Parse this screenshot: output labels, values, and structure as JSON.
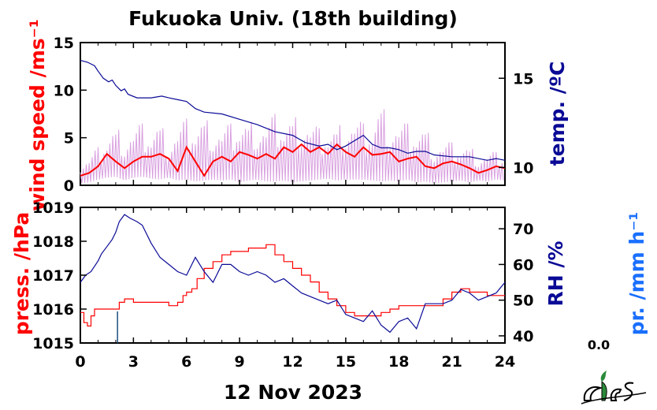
{
  "title": "Fukuoka Univ. (18th building)",
  "date_label": "12 Nov 2023",
  "precip_value": "0.0",
  "colors": {
    "wind": "#ff0000",
    "wind_raw": "#d9a0e0",
    "temp": "#0a0a96",
    "press": "#ff0000",
    "rh": "#0a0a96",
    "precip": "#1a6fff",
    "precip_bar": "#1a5080"
  },
  "chart_data": [
    {
      "type": "line",
      "panel": "top",
      "x_ticks": [
        "0",
        "3",
        "6",
        "9",
        "12",
        "15",
        "18",
        "21",
        "24"
      ],
      "xlim": [
        0,
        24
      ],
      "left_axis": {
        "label": "wind speed /ms⁻¹",
        "ticks": [
          "0",
          "5",
          "10",
          "15"
        ],
        "ylim": [
          0,
          15
        ]
      },
      "right_axis": {
        "label": "temp. /ºC",
        "ticks": [
          "10",
          "15"
        ],
        "ylim": [
          9,
          17
        ]
      },
      "series": [
        {
          "axis": "left",
          "style": "raw",
          "x": [
            0,
            0.5,
            1,
            1.5,
            2,
            2.5,
            3,
            3.5,
            4,
            4.5,
            5,
            5.5,
            6,
            6.5,
            7,
            7.5,
            8,
            8.5,
            9,
            9.5,
            10,
            10.5,
            11,
            11.5,
            12,
            12.5,
            13,
            13.5,
            14,
            14.5,
            15,
            15.5,
            16,
            16.5,
            17,
            17.5,
            18,
            18.5,
            19,
            19.5,
            20,
            20.5,
            21,
            21.5,
            22,
            22.5,
            23,
            23.5,
            24
          ],
          "low": [
            0.2,
            0.3,
            0.6,
            0.8,
            0.9,
            0.5,
            0.8,
            0.9,
            0.7,
            0.6,
            0.8,
            0.5,
            0.6,
            0.4,
            0.5,
            0.6,
            0.5,
            0.6,
            0.3,
            0.5,
            0.6,
            0.4,
            0.4,
            0.5,
            0.3,
            0.4,
            0.5,
            0.6,
            0.7,
            0.5,
            0.6,
            0.6,
            0.6,
            0.5,
            0.4,
            0.5,
            0.4,
            0.6,
            0.3,
            0.4,
            0.2,
            0.3,
            0.4,
            0.5,
            0.3,
            0.5,
            0.4,
            0.6,
            0.5
          ],
          "high": [
            2.5,
            3,
            4,
            5.5,
            6,
            5.5,
            6,
            6.5,
            6,
            6.5,
            5,
            6,
            7,
            6.5,
            7,
            6.5,
            6,
            6.5,
            7,
            6.5,
            7,
            6.5,
            7.5,
            7,
            7,
            7.5,
            6.5,
            6,
            6,
            6,
            7,
            7,
            6.5,
            6.5,
            8.5,
            7,
            6.5,
            6.5,
            6,
            6,
            4.5,
            4.5,
            4.5,
            4.5,
            4,
            3.5,
            3.5,
            3.5,
            3.5
          ]
        },
        {
          "axis": "left",
          "x": [
            0,
            0.5,
            1,
            1.5,
            2,
            2.5,
            3,
            3.5,
            4,
            4.5,
            5,
            5.5,
            6,
            6.5,
            7,
            7.5,
            8,
            8.5,
            9,
            9.5,
            10,
            10.5,
            11,
            11.5,
            12,
            12.5,
            13,
            13.5,
            14,
            14.5,
            15,
            15.5,
            16,
            16.5,
            17,
            17.5,
            18,
            18.5,
            19,
            19.5,
            20,
            20.5,
            21,
            21.5,
            22,
            22.5,
            23,
            23.5,
            24
          ],
          "y": [
            1,
            1.3,
            2,
            3.3,
            2.5,
            1.8,
            2.5,
            3,
            3,
            3.3,
            2.8,
            1.5,
            4,
            2.5,
            1,
            2.5,
            3,
            2.5,
            3.5,
            3.2,
            2.8,
            3.3,
            2.8,
            4,
            3.5,
            4.3,
            3.5,
            4,
            3.3,
            4.3,
            3.5,
            3,
            4,
            3.2,
            3.3,
            3.5,
            2.5,
            2.8,
            3,
            2,
            1.8,
            2.3,
            2.5,
            2.2,
            1.8,
            1.3,
            1.6,
            2,
            1.8
          ]
        },
        {
          "axis": "right",
          "x": [
            0,
            0.4,
            0.8,
            1,
            1.3,
            1.6,
            1.8,
            2,
            2.3,
            2.5,
            2.7,
            3.2,
            4,
            4.6,
            5,
            5.5,
            6,
            6.5,
            7,
            8,
            9,
            10,
            11,
            12,
            12.7,
            13.5,
            14,
            14.5,
            15,
            15.5,
            16,
            16.5,
            17,
            17.5,
            18,
            18.5,
            19,
            19.5,
            20,
            21,
            22,
            23,
            23.5,
            24
          ],
          "y": [
            16,
            15.9,
            15.7,
            15.4,
            15,
            14.8,
            14.9,
            14.6,
            14.3,
            14.4,
            14.1,
            13.9,
            13.9,
            14,
            13.9,
            13.8,
            13.7,
            13.3,
            13.1,
            13,
            12.7,
            12.4,
            12,
            11.8,
            11.4,
            11.2,
            11.3,
            11,
            11.2,
            11.5,
            11.8,
            11.3,
            11.1,
            11.1,
            11,
            10.8,
            10.9,
            10.9,
            10.7,
            10.6,
            10.6,
            10.4,
            10.5,
            10.4
          ]
        }
      ]
    },
    {
      "type": "line",
      "panel": "bottom",
      "x_ticks": [
        "0",
        "3",
        "6",
        "9",
        "12",
        "15",
        "18",
        "21",
        "24"
      ],
      "xlim": [
        0,
        24
      ],
      "xlabel": "12 Nov 2023",
      "left_axis": {
        "label": "press. /hPa",
        "ticks": [
          "1015",
          "1016",
          "1017",
          "1018",
          "1019"
        ],
        "ylim": [
          1015,
          1019
        ]
      },
      "right_axis": {
        "label": "RH /%",
        "ticks": [
          "40",
          "50",
          "60",
          "70"
        ],
        "ylim": [
          38,
          76
        ]
      },
      "precip_axis": {
        "label": "pr. /mm h⁻¹"
      },
      "series": [
        {
          "axis": "left",
          "step": true,
          "x": [
            0,
            0.2,
            0.4,
            0.6,
            0.8,
            1,
            1.5,
            2,
            2.2,
            2.5,
            3,
            4,
            5,
            5.5,
            5.8,
            6,
            6.3,
            6.6,
            7,
            7.5,
            8,
            8.5,
            9,
            9.5,
            10,
            10.5,
            11,
            11.5,
            12,
            12.5,
            13,
            13.5,
            14,
            14.5,
            15,
            15.5,
            16,
            16.5,
            17,
            17.5,
            18,
            18.5,
            19,
            20,
            20.5,
            21,
            21.5,
            22,
            22.5,
            23,
            23.5,
            24
          ],
          "y": [
            1015.9,
            1015.6,
            1015.5,
            1015.8,
            1016,
            1016,
            1016,
            1016,
            1016.2,
            1016.3,
            1016.2,
            1016.2,
            1016.1,
            1016.2,
            1016.4,
            1016.5,
            1016.6,
            1016.9,
            1017.2,
            1017.4,
            1017.6,
            1017.7,
            1017.7,
            1017.8,
            1017.8,
            1017.9,
            1017.6,
            1017.4,
            1017.2,
            1017,
            1016.8,
            1016.5,
            1016.3,
            1016.1,
            1015.9,
            1015.8,
            1015.8,
            1015.8,
            1015.9,
            1016,
            1016.1,
            1016.1,
            1016.1,
            1016.1,
            1016.3,
            1016.5,
            1016.6,
            1016.5,
            1016.5,
            1016.4,
            1016.4,
            1016.4
          ]
        },
        {
          "axis": "right",
          "x": [
            0,
            0.3,
            0.6,
            1,
            1.2,
            1.5,
            1.8,
            2,
            2.2,
            2.5,
            2.8,
            3.2,
            3.5,
            4,
            4.5,
            5,
            5.5,
            6,
            6.5,
            7,
            7.5,
            8,
            8.5,
            9,
            9.5,
            10,
            10.5,
            11,
            11.5,
            12,
            12.5,
            13,
            13.5,
            14,
            14.5,
            15,
            15.5,
            16,
            16.5,
            17,
            17.5,
            18,
            18.5,
            19,
            19.5,
            20,
            20.5,
            21,
            21.5,
            22,
            22.5,
            23,
            23.5,
            24
          ],
          "y": [
            55,
            57,
            58,
            61,
            63,
            65,
            67,
            69,
            72,
            74,
            73,
            72,
            71,
            66,
            62,
            60,
            58,
            57,
            62,
            58,
            55,
            60,
            60,
            58,
            57,
            58,
            57,
            55,
            56,
            54,
            52,
            51,
            50,
            49,
            50,
            46,
            45,
            44,
            47,
            43,
            41,
            44,
            45,
            42,
            49,
            49,
            49,
            50,
            53,
            52,
            50,
            51,
            52,
            55
          ]
        },
        {
          "axis": "precip",
          "style": "bar",
          "x": [
            2.1
          ],
          "value": [
            0.15
          ]
        }
      ]
    }
  ]
}
